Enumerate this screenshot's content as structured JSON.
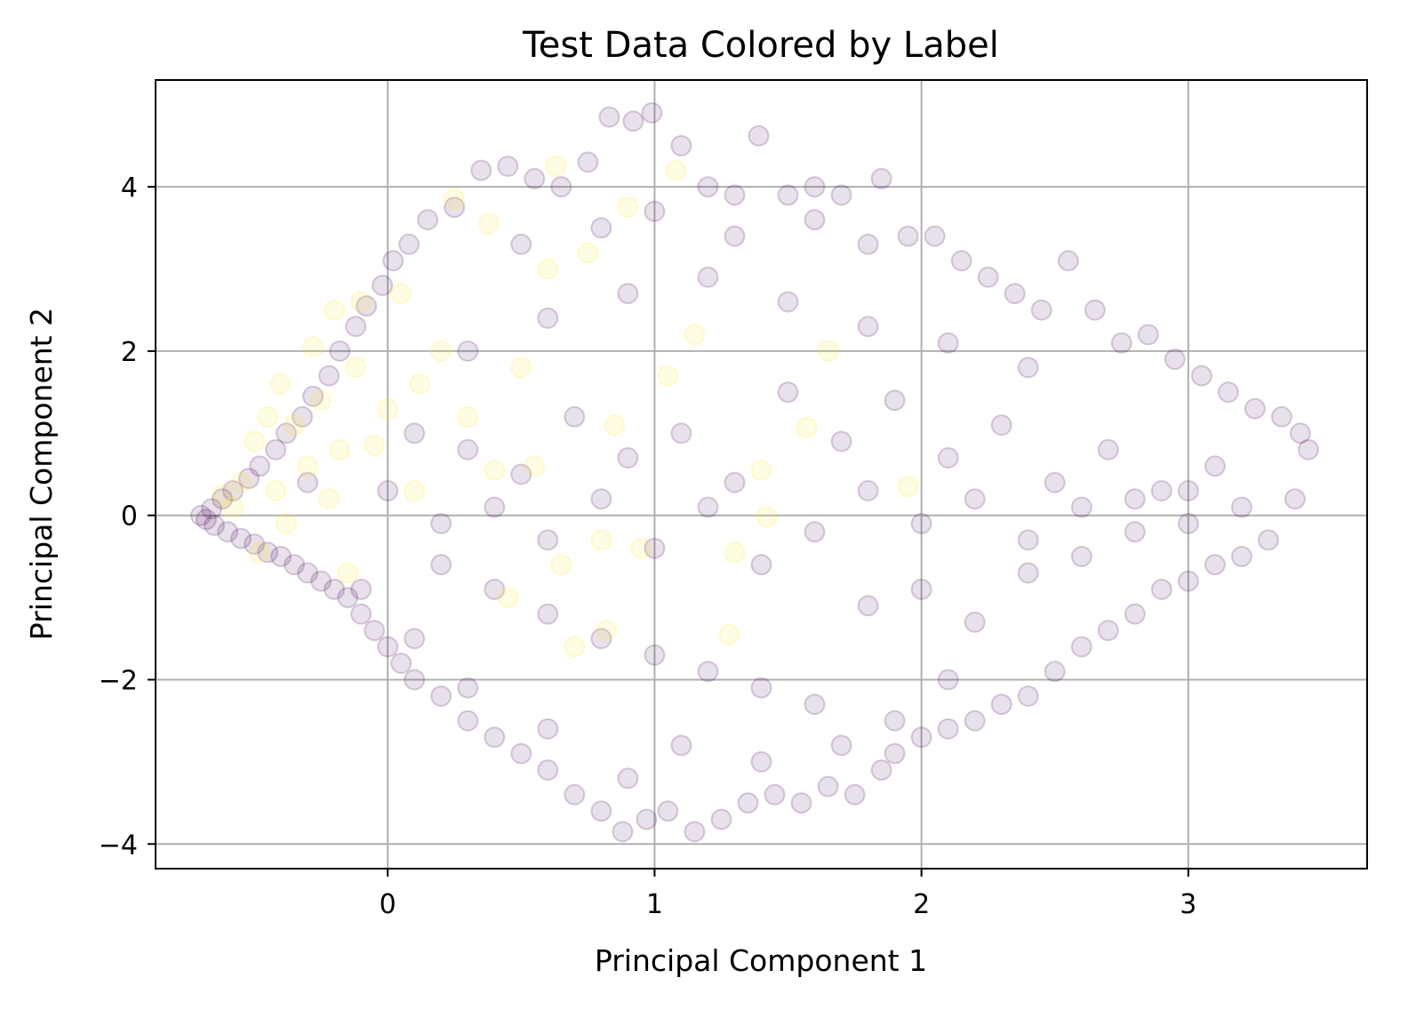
{
  "chart_data": {
    "type": "scatter",
    "title": "Test Data Colored by Label",
    "xlabel": "Principal Component 1",
    "ylabel": "Principal Component 2",
    "xlim": [
      -0.87,
      3.67
    ],
    "ylim": [
      -4.3,
      5.3
    ],
    "grid": true,
    "x_ticks": [
      {
        "value": 0,
        "label": "0"
      },
      {
        "value": 1,
        "label": "1"
      },
      {
        "value": 2,
        "label": "2"
      },
      {
        "value": 3,
        "label": "3"
      }
    ],
    "y_ticks": [
      {
        "value": -4,
        "label": "−4"
      },
      {
        "value": -2,
        "label": "−2"
      },
      {
        "value": 0,
        "label": "0"
      },
      {
        "value": 2,
        "label": "2"
      },
      {
        "value": 4,
        "label": "4"
      }
    ],
    "colormap": "viridis",
    "marker_alpha": 0.12,
    "colors": {
      "label_0": "#440154",
      "label_1": "#fde725"
    },
    "series": [
      {
        "label_value": 0,
        "color": "#440154",
        "points": [
          [
            -0.7,
            0.0
          ],
          [
            -0.68,
            -0.05
          ],
          [
            -0.66,
            0.08
          ],
          [
            -0.65,
            -0.12
          ],
          [
            -0.62,
            0.2
          ],
          [
            -0.6,
            -0.2
          ],
          [
            -0.58,
            0.3
          ],
          [
            -0.55,
            -0.28
          ],
          [
            -0.52,
            0.45
          ],
          [
            -0.5,
            -0.35
          ],
          [
            -0.48,
            0.6
          ],
          [
            -0.45,
            -0.45
          ],
          [
            -0.42,
            0.8
          ],
          [
            -0.4,
            -0.5
          ],
          [
            -0.38,
            1.0
          ],
          [
            -0.35,
            -0.6
          ],
          [
            -0.32,
            1.2
          ],
          [
            -0.3,
            -0.7
          ],
          [
            -0.28,
            1.45
          ],
          [
            -0.25,
            -0.8
          ],
          [
            -0.22,
            1.7
          ],
          [
            -0.2,
            -0.9
          ],
          [
            -0.18,
            2.0
          ],
          [
            -0.15,
            -1.0
          ],
          [
            -0.12,
            2.3
          ],
          [
            -0.1,
            -1.2
          ],
          [
            -0.08,
            2.55
          ],
          [
            -0.05,
            -1.4
          ],
          [
            -0.02,
            2.8
          ],
          [
            0.0,
            -1.6
          ],
          [
            0.02,
            3.1
          ],
          [
            0.05,
            -1.8
          ],
          [
            0.08,
            3.3
          ],
          [
            0.1,
            -2.0
          ],
          [
            0.15,
            3.6
          ],
          [
            0.2,
            -2.2
          ],
          [
            0.25,
            3.75
          ],
          [
            0.3,
            -2.5
          ],
          [
            0.35,
            4.2
          ],
          [
            0.4,
            -2.7
          ],
          [
            0.45,
            4.25
          ],
          [
            0.5,
            -2.9
          ],
          [
            0.55,
            4.1
          ],
          [
            0.6,
            -3.1
          ],
          [
            0.65,
            4.0
          ],
          [
            0.7,
            -3.4
          ],
          [
            0.75,
            4.3
          ],
          [
            0.8,
            -3.6
          ],
          [
            0.83,
            4.85
          ],
          [
            0.88,
            -3.85
          ],
          [
            0.92,
            4.8
          ],
          [
            0.97,
            -3.7
          ],
          [
            0.99,
            4.9
          ],
          [
            1.05,
            -3.6
          ],
          [
            1.1,
            4.5
          ],
          [
            1.15,
            -3.85
          ],
          [
            1.2,
            4.0
          ],
          [
            1.25,
            -3.7
          ],
          [
            1.3,
            3.9
          ],
          [
            1.35,
            -3.5
          ],
          [
            1.39,
            4.62
          ],
          [
            1.45,
            -3.4
          ],
          [
            1.5,
            3.9
          ],
          [
            1.55,
            -3.5
          ],
          [
            1.6,
            4.0
          ],
          [
            1.65,
            -3.3
          ],
          [
            1.7,
            3.9
          ],
          [
            1.75,
            -3.4
          ],
          [
            1.8,
            3.3
          ],
          [
            1.85,
            -3.1
          ],
          [
            1.85,
            4.1
          ],
          [
            1.9,
            -2.9
          ],
          [
            1.95,
            3.4
          ],
          [
            2.0,
            -2.7
          ],
          [
            2.05,
            3.4
          ],
          [
            2.1,
            -2.6
          ],
          [
            2.15,
            3.1
          ],
          [
            2.2,
            -2.5
          ],
          [
            2.25,
            2.9
          ],
          [
            2.3,
            -2.3
          ],
          [
            2.35,
            2.7
          ],
          [
            2.4,
            -2.2
          ],
          [
            2.45,
            2.5
          ],
          [
            2.5,
            -1.9
          ],
          [
            2.55,
            3.1
          ],
          [
            2.6,
            -1.6
          ],
          [
            2.65,
            2.5
          ],
          [
            2.7,
            -1.4
          ],
          [
            2.75,
            2.1
          ],
          [
            2.8,
            -1.2
          ],
          [
            2.85,
            2.2
          ],
          [
            2.9,
            -0.9
          ],
          [
            2.95,
            1.9
          ],
          [
            3.0,
            -0.8
          ],
          [
            3.05,
            1.7
          ],
          [
            3.1,
            -0.6
          ],
          [
            3.15,
            1.5
          ],
          [
            3.2,
            -0.5
          ],
          [
            3.25,
            1.3
          ],
          [
            3.3,
            -0.3
          ],
          [
            3.35,
            1.2
          ],
          [
            3.4,
            0.2
          ],
          [
            3.45,
            0.8
          ],
          [
            3.42,
            1.0
          ],
          [
            0.1,
            1.0
          ],
          [
            0.3,
            0.8
          ],
          [
            0.5,
            0.5
          ],
          [
            0.7,
            1.2
          ],
          [
            0.9,
            0.7
          ],
          [
            1.1,
            1.0
          ],
          [
            1.3,
            0.4
          ],
          [
            1.5,
            1.5
          ],
          [
            1.7,
            0.9
          ],
          [
            1.9,
            1.4
          ],
          [
            2.1,
            0.7
          ],
          [
            2.3,
            1.1
          ],
          [
            2.5,
            0.4
          ],
          [
            2.7,
            0.8
          ],
          [
            2.9,
            0.3
          ],
          [
            3.1,
            0.6
          ],
          [
            0.2,
            -0.6
          ],
          [
            0.4,
            -0.9
          ],
          [
            0.6,
            -1.2
          ],
          [
            0.8,
            -1.5
          ],
          [
            1.0,
            -1.7
          ],
          [
            1.2,
            -1.9
          ],
          [
            1.4,
            -2.1
          ],
          [
            1.6,
            -2.3
          ],
          [
            1.8,
            -1.1
          ],
          [
            2.0,
            -0.9
          ],
          [
            2.2,
            -1.3
          ],
          [
            2.4,
            -0.7
          ],
          [
            2.6,
            -0.5
          ],
          [
            2.8,
            -0.2
          ],
          [
            3.0,
            -0.1
          ],
          [
            3.2,
            0.1
          ],
          [
            0.3,
            2.0
          ],
          [
            0.6,
            2.4
          ],
          [
            0.9,
            2.7
          ],
          [
            1.2,
            2.9
          ],
          [
            1.5,
            2.6
          ],
          [
            1.8,
            2.3
          ],
          [
            2.1,
            2.1
          ],
          [
            2.4,
            1.8
          ],
          [
            0.0,
            0.3
          ],
          [
            0.2,
            -0.1
          ],
          [
            0.4,
            0.1
          ],
          [
            0.6,
            -0.3
          ],
          [
            0.8,
            0.2
          ],
          [
            1.0,
            -0.4
          ],
          [
            1.2,
            0.1
          ],
          [
            1.4,
            -0.6
          ],
          [
            1.6,
            -0.2
          ],
          [
            1.8,
            0.3
          ],
          [
            2.0,
            -0.1
          ],
          [
            2.2,
            0.2
          ],
          [
            2.4,
            -0.3
          ],
          [
            2.6,
            0.1
          ],
          [
            2.8,
            0.2
          ],
          [
            3.0,
            0.3
          ],
          [
            0.5,
            3.3
          ],
          [
            0.8,
            3.5
          ],
          [
            1.0,
            3.7
          ],
          [
            1.3,
            3.4
          ],
          [
            1.6,
            3.6
          ],
          [
            1.1,
            -2.8
          ],
          [
            1.4,
            -3.0
          ],
          [
            0.9,
            -3.2
          ],
          [
            0.6,
            -2.6
          ],
          [
            1.7,
            -2.8
          ],
          [
            1.9,
            -2.5
          ],
          [
            2.1,
            -2.0
          ],
          [
            0.3,
            -2.1
          ],
          [
            0.1,
            -1.5
          ],
          [
            -0.1,
            -0.9
          ],
          [
            -0.3,
            0.4
          ]
        ]
      },
      {
        "label_value": 1,
        "color": "#fde725",
        "points": [
          [
            -0.62,
            0.25
          ],
          [
            -0.58,
            0.1
          ],
          [
            -0.55,
            0.4
          ],
          [
            -0.5,
            0.9
          ],
          [
            -0.48,
            -0.45
          ],
          [
            -0.45,
            1.2
          ],
          [
            -0.42,
            0.3
          ],
          [
            -0.4,
            1.6
          ],
          [
            -0.38,
            -0.1
          ],
          [
            -0.35,
            1.1
          ],
          [
            -0.3,
            0.6
          ],
          [
            -0.28,
            2.05
          ],
          [
            -0.25,
            1.4
          ],
          [
            -0.22,
            0.2
          ],
          [
            -0.2,
            2.5
          ],
          [
            -0.18,
            0.8
          ],
          [
            -0.15,
            -0.7
          ],
          [
            -0.12,
            1.8
          ],
          [
            -0.1,
            2.6
          ],
          [
            -0.05,
            0.85
          ],
          [
            0.0,
            1.3
          ],
          [
            0.05,
            2.7
          ],
          [
            0.1,
            0.3
          ],
          [
            0.12,
            1.6
          ],
          [
            0.2,
            2.0
          ],
          [
            0.25,
            3.85
          ],
          [
            0.3,
            1.2
          ],
          [
            0.38,
            3.55
          ],
          [
            0.4,
            0.55
          ],
          [
            0.45,
            -1.0
          ],
          [
            0.5,
            1.8
          ],
          [
            0.55,
            0.6
          ],
          [
            0.6,
            3.0
          ],
          [
            0.63,
            4.25
          ],
          [
            0.65,
            -0.6
          ],
          [
            0.7,
            -1.6
          ],
          [
            0.75,
            3.2
          ],
          [
            0.8,
            -0.3
          ],
          [
            0.82,
            -1.4
          ],
          [
            0.85,
            1.1
          ],
          [
            0.9,
            3.75
          ],
          [
            0.95,
            -0.4
          ],
          [
            1.05,
            1.7
          ],
          [
            1.08,
            4.2
          ],
          [
            1.15,
            2.2
          ],
          [
            1.28,
            -1.45
          ],
          [
            1.3,
            -0.45
          ],
          [
            1.4,
            0.55
          ],
          [
            1.42,
            -0.02
          ],
          [
            1.57,
            1.07
          ],
          [
            1.65,
            2.0
          ],
          [
            1.95,
            0.35
          ]
        ]
      }
    ]
  }
}
